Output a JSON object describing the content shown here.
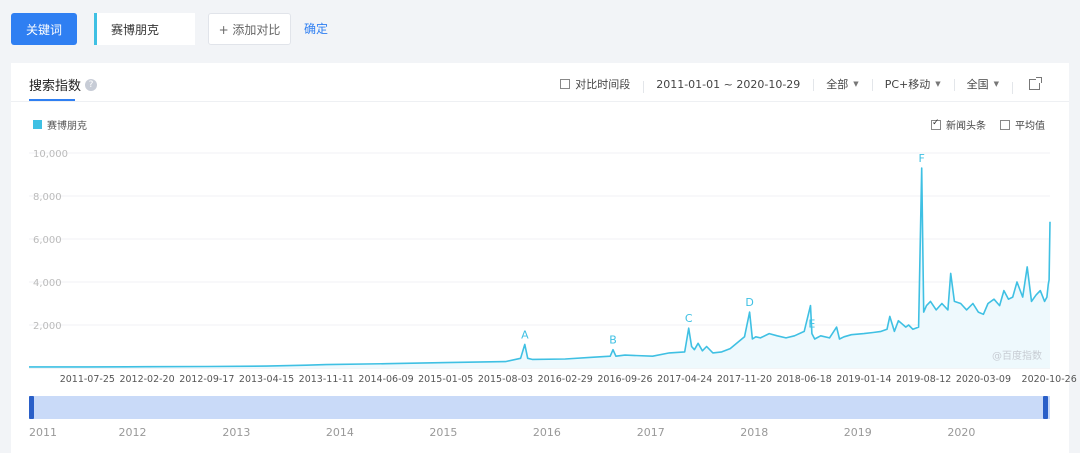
{
  "topbar": {
    "keyword_tab": "关键词",
    "keyword_value": "赛博朋克",
    "add_compare": "+ 添加对比",
    "confirm": "确定"
  },
  "card": {
    "title": "搜索指数",
    "help_icon": "question-icon",
    "filters": {
      "compare_period": "对比时间段",
      "date_range": "2011-01-01 ~ 2020-10-29",
      "source": "全部",
      "device": "PC+移动",
      "region": "全国",
      "export_icon": "external-link-icon"
    },
    "legend_label": "赛博朋克",
    "options": {
      "news": "新闻头条",
      "news_checked": true,
      "average": "平均值",
      "average_checked": false
    },
    "watermark": "@百度指数"
  },
  "colors": {
    "accent": "#2f7ff2",
    "series": "#3fc0e3",
    "fill": "#eef9fd",
    "slider": "#c9daf8",
    "handle": "#2a5fc8"
  },
  "chart_data": {
    "type": "area",
    "series": [
      {
        "name": "赛博朋克",
        "x": [
          "2011-01-01",
          "2011-07-25",
          "2012-02-20",
          "2012-09-17",
          "2013-04-15",
          "2013-09-01",
          "2013-11-11",
          "2014-06-09",
          "2015-01-05",
          "2015-08-03",
          "2015-09-25",
          "2015-10-10",
          "2015-10-20",
          "2015-11-05",
          "2016-02-29",
          "2016-06-01",
          "2016-08-05",
          "2016-08-15",
          "2016-08-25",
          "2016-09-26",
          "2017-01-01",
          "2017-03-01",
          "2017-04-24",
          "2017-05-08",
          "2017-05-18",
          "2017-05-28",
          "2017-06-10",
          "2017-06-25",
          "2017-07-10",
          "2017-08-01",
          "2017-09-01",
          "2017-10-01",
          "2017-11-20",
          "2017-12-08",
          "2017-12-18",
          "2017-12-30",
          "2018-01-15",
          "2018-02-15",
          "2018-03-15",
          "2018-04-15",
          "2018-05-15",
          "2018-06-18",
          "2018-07-10",
          "2018-07-15",
          "2018-07-25",
          "2018-08-15",
          "2018-09-15",
          "2018-10-10",
          "2018-10-20",
          "2018-11-05",
          "2018-12-01",
          "2019-01-14",
          "2019-02-15",
          "2019-03-15",
          "2019-04-05",
          "2019-04-15",
          "2019-05-01",
          "2019-05-15",
          "2019-06-10",
          "2019-06-20",
          "2019-07-05",
          "2019-07-25",
          "2019-08-05",
          "2019-08-12",
          "2019-08-22",
          "2019-09-05",
          "2019-09-25",
          "2019-10-15",
          "2019-11-05",
          "2019-11-15",
          "2019-11-28",
          "2019-12-20",
          "2020-01-10",
          "2020-02-01",
          "2020-02-20",
          "2020-03-09",
          "2020-03-25",
          "2020-04-15",
          "2020-05-05",
          "2020-05-20",
          "2020-06-05",
          "2020-06-20",
          "2020-07-05",
          "2020-07-25",
          "2020-08-10",
          "2020-08-25",
          "2020-09-10",
          "2020-09-25",
          "2020-10-10",
          "2020-10-18",
          "2020-10-23",
          "2020-10-26",
          "2020-10-29"
        ],
        "values": [
          50,
          50,
          60,
          70,
          90,
          130,
          160,
          200,
          250,
          300,
          450,
          1100,
          450,
          400,
          420,
          500,
          550,
          850,
          550,
          600,
          550,
          700,
          750,
          1850,
          1000,
          850,
          1150,
          800,
          1000,
          700,
          750,
          900,
          1450,
          2600,
          1350,
          1450,
          1400,
          1600,
          1500,
          1400,
          1500,
          1700,
          2900,
          1600,
          1350,
          1500,
          1400,
          1900,
          1350,
          1450,
          1550,
          1600,
          1650,
          1700,
          1800,
          2400,
          1700,
          2200,
          1900,
          2000,
          1800,
          1900,
          9300,
          2600,
          2900,
          3100,
          2700,
          3000,
          2700,
          4400,
          3100,
          3000,
          2700,
          3000,
          2600,
          2500,
          3000,
          3200,
          2900,
          3600,
          3200,
          3300,
          4000,
          3300,
          4700,
          3100,
          3400,
          3600,
          3100,
          3300,
          3900,
          4100,
          6800
        ]
      }
    ],
    "annotations": [
      {
        "label": "A",
        "x": "2015-10-10"
      },
      {
        "label": "B",
        "x": "2016-08-15"
      },
      {
        "label": "C",
        "x": "2017-05-08"
      },
      {
        "label": "D",
        "x": "2017-12-08"
      },
      {
        "label": "E",
        "x": "2018-07-15"
      },
      {
        "label": "F",
        "x": "2019-08-05"
      }
    ],
    "y_ticks": [
      "2,000",
      "4,000",
      "6,000",
      "8,000",
      "10,000"
    ],
    "x_ticks": [
      "2011-07-25",
      "2012-02-20",
      "2012-09-17",
      "2013-04-15",
      "2013-11-11",
      "2014-06-09",
      "2015-01-05",
      "2015-08-03",
      "2016-02-29",
      "2016-09-26",
      "2017-04-24",
      "2017-11-20",
      "2018-06-18",
      "2019-01-14",
      "2019-08-12",
      "2020-03-09",
      "2020-10-26"
    ],
    "ylim": [
      0,
      10000
    ],
    "xlim": [
      "2011-01-01",
      "2020-10-29"
    ],
    "slider_years": [
      "2011",
      "2012",
      "2013",
      "2014",
      "2015",
      "2016",
      "2017",
      "2018",
      "2019",
      "2020"
    ],
    "grid": true,
    "legend": "top-left"
  }
}
